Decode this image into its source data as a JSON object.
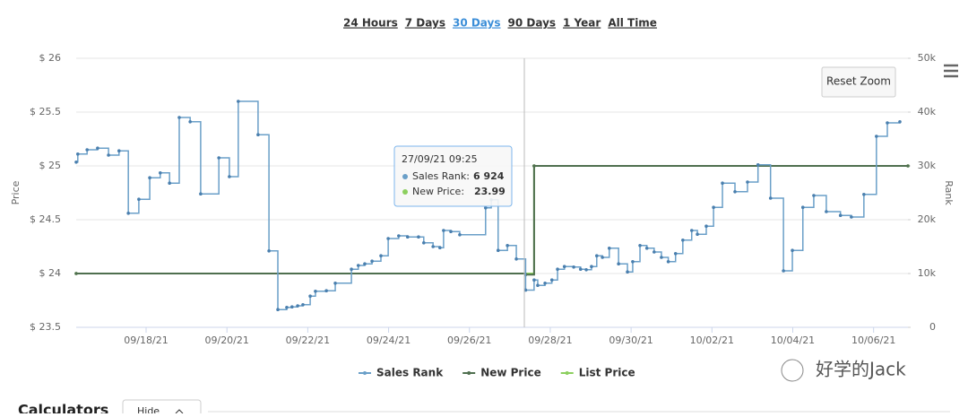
{
  "range_buttons": [
    "24 Hours",
    "7 Days",
    "30 Days",
    "90 Days",
    "1 Year",
    "All Time"
  ],
  "active_range": 2,
  "reset_zoom": "Reset Zoom",
  "tooltip": {
    "date": "27/09/21 09:25",
    "rank_label": "Sales Rank:",
    "rank": "6 924",
    "price_label": "New Price:",
    "price": "23.99"
  },
  "calculators": {
    "title": "Calculators",
    "button": "Hide"
  },
  "watermark": "好学的Jack",
  "chart_data": {
    "type": "step",
    "y_label": "Price",
    "y2_label": "Rank",
    "xlim": [
      16.27,
      36.85
    ],
    "xticks": [
      {
        "value": 18,
        "label": "09/18/21"
      },
      {
        "value": 20,
        "label": "09/20/21"
      },
      {
        "value": 22,
        "label": "09/22/21"
      },
      {
        "value": 24,
        "label": "09/24/21"
      },
      {
        "value": 26,
        "label": "09/26/21"
      },
      {
        "value": 28,
        "label": "09/28/21"
      },
      {
        "value": 30,
        "label": "09/30/21"
      },
      {
        "value": 32,
        "label": "10/02/21"
      },
      {
        "value": 34,
        "label": "10/04/21"
      },
      {
        "value": 36,
        "label": "10/06/21"
      }
    ],
    "ylim": [
      23.5,
      26
    ],
    "yticks": [
      {
        "value": 23.5,
        "label": "$ 23.5"
      },
      {
        "value": 24,
        "label": "$ 24"
      },
      {
        "value": 24.5,
        "label": "$ 24.5"
      },
      {
        "value": 25,
        "label": "$ 25"
      },
      {
        "value": 25.5,
        "label": "$ 25.5"
      },
      {
        "value": 26,
        "label": "$ 26"
      }
    ],
    "y2lim": [
      0,
      50000
    ],
    "y2ticks": [
      0,
      {
        "value": 10000,
        "label": "10k"
      },
      {
        "value": 20000,
        "label": "20k"
      },
      {
        "value": 30000,
        "label": "30k"
      },
      {
        "value": 40000,
        "label": "40k"
      },
      {
        "value": 50000,
        "label": "50k"
      }
    ],
    "grid": true,
    "series": [
      {
        "name": "Sales Rank",
        "color": "#6a9fc8",
        "axis": "y2",
        "x": [
          16.27,
          16.31,
          16.54,
          16.8,
          17.07,
          17.33,
          17.56,
          17.82,
          18.09,
          18.35,
          18.58,
          18.82,
          19.09,
          19.35,
          19.8,
          20.06,
          20.28,
          20.77,
          21.04,
          21.26,
          21.48,
          21.61,
          21.75,
          21.88,
          22.06,
          22.19,
          22.46,
          22.68,
          23.08,
          23.25,
          23.41,
          23.59,
          23.81,
          23.99,
          24.25,
          24.47,
          24.74,
          24.87,
          25.1,
          25.27,
          25.36,
          25.54,
          25.76,
          26.4,
          26.54,
          26.71,
          26.94,
          27.16,
          27.39,
          27.6,
          27.69,
          27.87,
          28.04,
          28.18,
          28.35,
          28.58,
          28.75,
          28.89,
          29.02,
          29.15,
          29.29,
          29.46,
          29.69,
          29.91,
          30.04,
          30.22,
          30.39,
          30.57,
          30.75,
          30.92,
          31.1,
          31.28,
          31.5,
          31.64,
          31.86,
          32.04,
          32.26,
          32.57,
          32.88,
          33.14,
          33.45,
          33.77,
          33.99,
          34.25,
          34.52,
          34.83,
          35.18,
          35.45,
          35.76,
          36.07,
          36.34,
          36.65
        ],
        "values": [
          30700,
          32200,
          33000,
          33300,
          32000,
          32800,
          21200,
          23800,
          27800,
          28700,
          26800,
          39000,
          38200,
          24800,
          31500,
          28000,
          42000,
          35800,
          14200,
          3300,
          3700,
          3800,
          4000,
          4200,
          5800,
          6700,
          6800,
          8200,
          10800,
          11500,
          11800,
          12300,
          13300,
          16500,
          17000,
          16800,
          16800,
          15700,
          15000,
          14800,
          18000,
          17800,
          17200,
          22200,
          23700,
          14300,
          15200,
          12700,
          6924,
          8800,
          7800,
          8200,
          8800,
          10800,
          11300,
          11200,
          10800,
          10700,
          11300,
          13300,
          13000,
          14700,
          11800,
          10300,
          12200,
          15200,
          14700,
          14000,
          13000,
          12200,
          13700,
          16200,
          18000,
          17300,
          18800,
          22300,
          26800,
          25200,
          27000,
          30200,
          24000,
          10500,
          14300,
          22300,
          24500,
          21500,
          20800,
          20500,
          24700,
          35500,
          38000,
          38200
        ]
      },
      {
        "name": "New Price",
        "color": "#4f6f4f",
        "x": [
          16.27,
          27.39,
          27.6,
          36.85
        ],
        "values": [
          24,
          23.99,
          25,
          25
        ]
      },
      {
        "name": "List Price",
        "color": "#8ccf5e",
        "x": [
          16.27,
          27.6,
          36.85
        ],
        "values": [
          24,
          25,
          25
        ]
      }
    ]
  }
}
